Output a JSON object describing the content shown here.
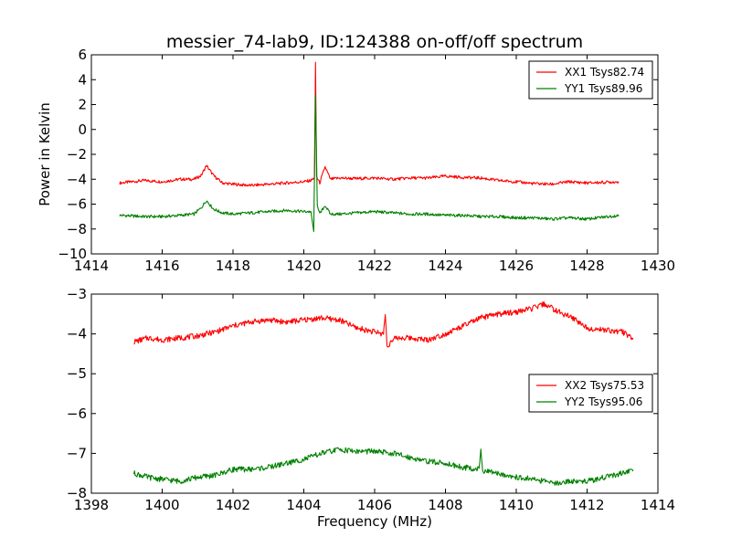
{
  "chart_data": [
    {
      "type": "line",
      "title": "messier_74-lab9, ID:124388 on-off/off spectrum",
      "xlabel": "",
      "ylabel": "Power in Kelvin",
      "xlim": [
        1414,
        1430
      ],
      "ylim": [
        -10,
        6
      ],
      "xticks": [
        1414,
        1416,
        1418,
        1420,
        1422,
        1424,
        1426,
        1428,
        1430
      ],
      "yticks": [
        -10,
        -8,
        -6,
        -4,
        -2,
        0,
        2,
        4,
        6
      ],
      "legend_position": "top-right",
      "series": [
        {
          "name": "XX1 Tsys82.74",
          "color": "#ff0000",
          "points": [
            [
              1414.8,
              -4.3
            ],
            [
              1415.5,
              -4.1
            ],
            [
              1416.0,
              -4.2
            ],
            [
              1416.5,
              -4.0
            ],
            [
              1416.9,
              -4.0
            ],
            [
              1417.1,
              -3.7
            ],
            [
              1417.25,
              -2.9
            ],
            [
              1417.45,
              -3.7
            ],
            [
              1417.7,
              -4.3
            ],
            [
              1418.0,
              -4.4
            ],
            [
              1418.5,
              -4.5
            ],
            [
              1419.0,
              -4.4
            ],
            [
              1419.5,
              -4.3
            ],
            [
              1420.0,
              -4.2
            ],
            [
              1420.2,
              -4.1
            ],
            [
              1420.3,
              -3.9
            ],
            [
              1420.33,
              5.4
            ],
            [
              1420.36,
              -3.8
            ],
            [
              1420.45,
              -4.3
            ],
            [
              1420.6,
              -3.0
            ],
            [
              1420.75,
              -4.0
            ],
            [
              1421.0,
              -3.9
            ],
            [
              1421.5,
              -3.95
            ],
            [
              1422.0,
              -3.9
            ],
            [
              1422.5,
              -4.0
            ],
            [
              1423.0,
              -3.9
            ],
            [
              1423.5,
              -3.9
            ],
            [
              1424.0,
              -3.75
            ],
            [
              1424.5,
              -3.85
            ],
            [
              1425.0,
              -3.9
            ],
            [
              1425.5,
              -4.1
            ],
            [
              1426.0,
              -4.2
            ],
            [
              1426.5,
              -4.35
            ],
            [
              1427.0,
              -4.4
            ],
            [
              1427.5,
              -4.2
            ],
            [
              1428.0,
              -4.3
            ],
            [
              1428.9,
              -4.2
            ]
          ]
        },
        {
          "name": "YY1 Tsys89.96",
          "color": "#008000",
          "points": [
            [
              1414.8,
              -6.9
            ],
            [
              1415.5,
              -7.0
            ],
            [
              1416.0,
              -7.0
            ],
            [
              1416.5,
              -6.9
            ],
            [
              1416.9,
              -6.8
            ],
            [
              1417.1,
              -6.3
            ],
            [
              1417.25,
              -5.7
            ],
            [
              1417.45,
              -6.4
            ],
            [
              1417.7,
              -6.7
            ],
            [
              1418.0,
              -6.8
            ],
            [
              1418.5,
              -6.7
            ],
            [
              1419.0,
              -6.6
            ],
            [
              1419.5,
              -6.5
            ],
            [
              1420.0,
              -6.6
            ],
            [
              1420.2,
              -6.6
            ],
            [
              1420.28,
              -8.2
            ],
            [
              1420.33,
              2.8
            ],
            [
              1420.38,
              -6.0
            ],
            [
              1420.45,
              -6.8
            ],
            [
              1420.6,
              -6.1
            ],
            [
              1420.75,
              -6.8
            ],
            [
              1421.0,
              -6.8
            ],
            [
              1421.5,
              -6.7
            ],
            [
              1422.0,
              -6.6
            ],
            [
              1422.5,
              -6.7
            ],
            [
              1423.0,
              -6.8
            ],
            [
              1423.5,
              -6.8
            ],
            [
              1424.0,
              -6.9
            ],
            [
              1424.5,
              -6.9
            ],
            [
              1425.0,
              -7.0
            ],
            [
              1425.5,
              -7.0
            ],
            [
              1426.0,
              -7.1
            ],
            [
              1426.5,
              -7.1
            ],
            [
              1427.0,
              -7.2
            ],
            [
              1427.5,
              -7.1
            ],
            [
              1428.0,
              -7.2
            ],
            [
              1428.9,
              -6.9
            ]
          ]
        }
      ]
    },
    {
      "type": "line",
      "title": "",
      "xlabel": "Frequency (MHz)",
      "ylabel": "",
      "xlim": [
        1398,
        1414
      ],
      "ylim": [
        -8,
        -3
      ],
      "xticks": [
        1398,
        1400,
        1402,
        1404,
        1406,
        1408,
        1410,
        1412,
        1414
      ],
      "yticks": [
        -8,
        -7,
        -6,
        -5,
        -4,
        -3
      ],
      "legend_position": "center-right",
      "series": [
        {
          "name": "XX2 Tsys75.53",
          "color": "#ff0000",
          "points": [
            [
              1399.2,
              -4.2
            ],
            [
              1399.6,
              -4.1
            ],
            [
              1400.0,
              -4.15
            ],
            [
              1400.5,
              -4.1
            ],
            [
              1401.0,
              -4.05
            ],
            [
              1401.5,
              -3.95
            ],
            [
              1402.0,
              -3.8
            ],
            [
              1402.5,
              -3.7
            ],
            [
              1403.0,
              -3.65
            ],
            [
              1403.5,
              -3.7
            ],
            [
              1404.0,
              -3.65
            ],
            [
              1404.5,
              -3.6
            ],
            [
              1405.0,
              -3.65
            ],
            [
              1405.5,
              -3.85
            ],
            [
              1406.0,
              -3.95
            ],
            [
              1406.25,
              -4.0
            ],
            [
              1406.3,
              -3.5
            ],
            [
              1406.35,
              -4.3
            ],
            [
              1406.6,
              -4.1
            ],
            [
              1407.0,
              -4.1
            ],
            [
              1407.5,
              -4.15
            ],
            [
              1408.0,
              -4.0
            ],
            [
              1408.5,
              -3.8
            ],
            [
              1409.0,
              -3.6
            ],
            [
              1409.5,
              -3.5
            ],
            [
              1410.0,
              -3.45
            ],
            [
              1410.5,
              -3.35
            ],
            [
              1410.8,
              -3.25
            ],
            [
              1411.2,
              -3.45
            ],
            [
              1411.6,
              -3.6
            ],
            [
              1412.0,
              -3.85
            ],
            [
              1412.5,
              -3.9
            ],
            [
              1413.0,
              -3.95
            ],
            [
              1413.3,
              -4.1
            ]
          ]
        },
        {
          "name": "YY2 Tsys95.06",
          "color": "#008000",
          "points": [
            [
              1399.2,
              -7.5
            ],
            [
              1399.6,
              -7.6
            ],
            [
              1400.0,
              -7.65
            ],
            [
              1400.5,
              -7.7
            ],
            [
              1401.0,
              -7.6
            ],
            [
              1401.5,
              -7.55
            ],
            [
              1402.0,
              -7.4
            ],
            [
              1402.5,
              -7.4
            ],
            [
              1403.0,
              -7.35
            ],
            [
              1403.5,
              -7.25
            ],
            [
              1404.0,
              -7.15
            ],
            [
              1404.5,
              -7.0
            ],
            [
              1405.0,
              -6.9
            ],
            [
              1405.5,
              -6.95
            ],
            [
              1406.0,
              -6.95
            ],
            [
              1406.5,
              -7.0
            ],
            [
              1407.0,
              -7.1
            ],
            [
              1407.5,
              -7.2
            ],
            [
              1408.0,
              -7.25
            ],
            [
              1408.5,
              -7.35
            ],
            [
              1408.95,
              -7.4
            ],
            [
              1409.0,
              -6.85
            ],
            [
              1409.05,
              -7.45
            ],
            [
              1409.5,
              -7.5
            ],
            [
              1410.0,
              -7.6
            ],
            [
              1410.5,
              -7.65
            ],
            [
              1411.0,
              -7.75
            ],
            [
              1411.5,
              -7.7
            ],
            [
              1412.0,
              -7.7
            ],
            [
              1412.5,
              -7.6
            ],
            [
              1413.0,
              -7.5
            ],
            [
              1413.3,
              -7.45
            ]
          ]
        }
      ]
    }
  ]
}
